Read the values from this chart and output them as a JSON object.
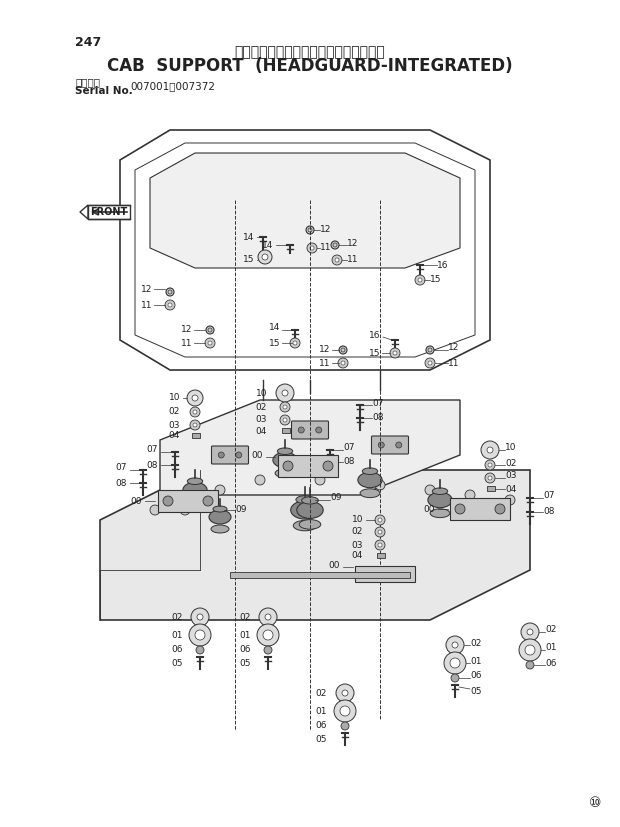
{
  "title_japanese": "キャブ取付部品〈ヘッドガード一体型〉",
  "title_english": "CAB  SUPPORT  (HEADGUARD-INTEGRATED)",
  "page_number": "247",
  "serial_label": "適用号機\nSerial No.",
  "serial_range": "007001～007372",
  "bg_color": "#ffffff",
  "line_color": "#333333",
  "text_color": "#222222",
  "footer_symbol": "⑩",
  "front_label": "FRONT"
}
